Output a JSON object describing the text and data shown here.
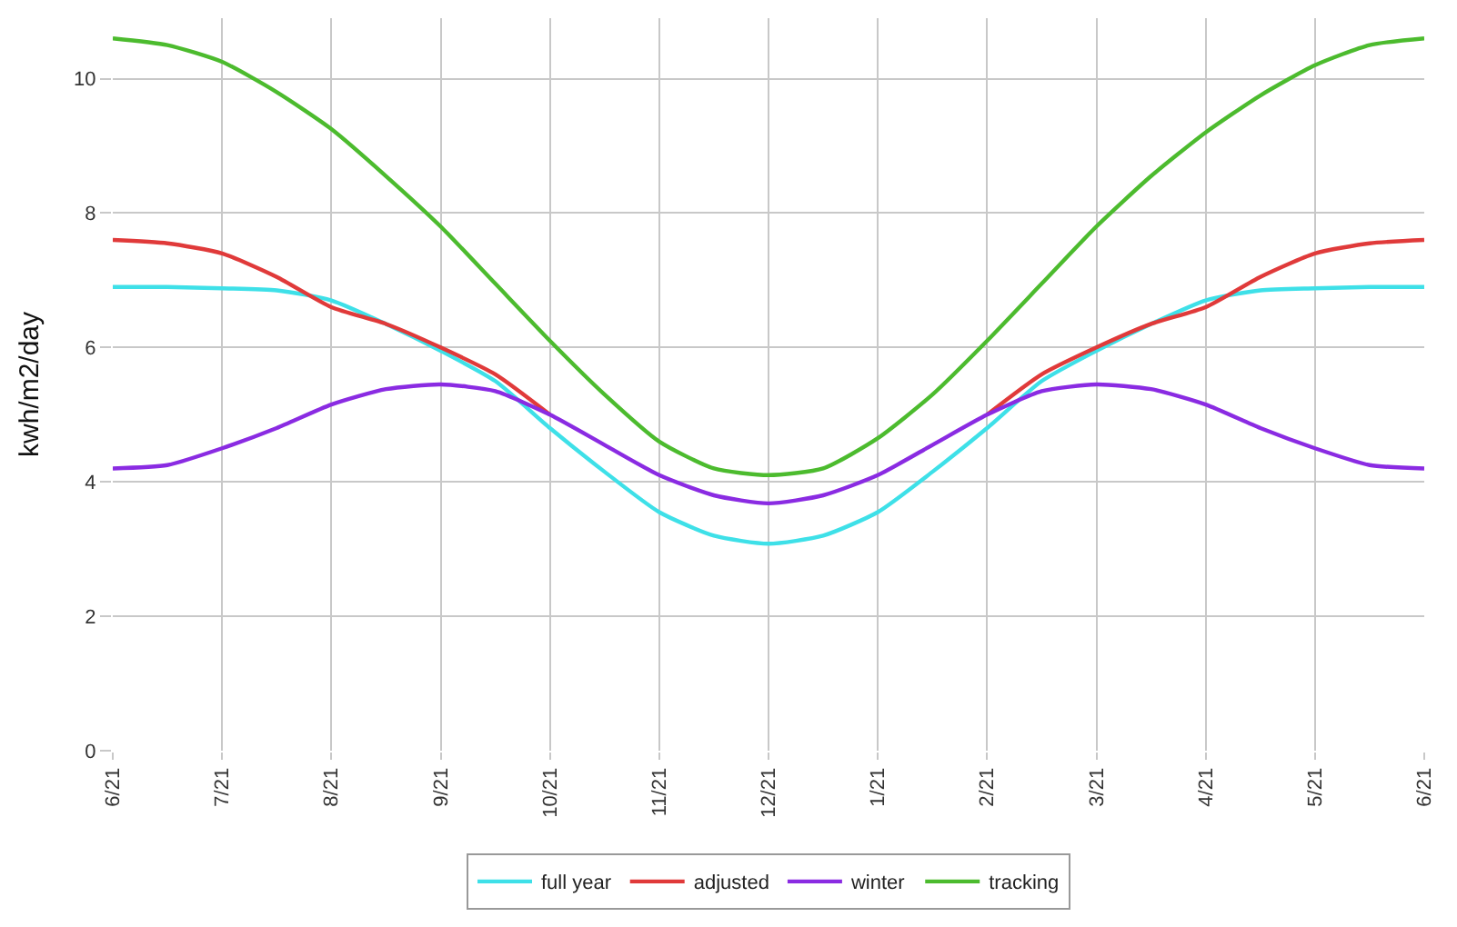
{
  "chart_data": {
    "type": "line",
    "ylabel": "kwh/m2/day",
    "categories": [
      "6/21",
      null,
      "7/21",
      null,
      "8/21",
      null,
      "9/21",
      null,
      "10/21",
      null,
      "11/21",
      null,
      "12/21",
      null,
      "1/21",
      null,
      "2/21",
      null,
      "3/21",
      null,
      "4/21",
      null,
      "5/21",
      null,
      "6/21"
    ],
    "ylim": [
      0,
      10.9
    ],
    "yticks": [
      0,
      2,
      4,
      6,
      8,
      10
    ],
    "grid": true,
    "legend": "bottom",
    "marker": "none",
    "line_style": "solid",
    "series": [
      {
        "name": "full year",
        "color": "#3ee0e8",
        "values": [
          6.9,
          6.9,
          6.88,
          6.85,
          6.7,
          6.35,
          5.95,
          5.5,
          4.8,
          4.15,
          3.55,
          3.2,
          3.08,
          3.2,
          3.55,
          4.15,
          4.8,
          5.5,
          5.95,
          6.35,
          6.7,
          6.85,
          6.88,
          6.9,
          6.9
        ]
      },
      {
        "name": "adjusted",
        "color": "#e03a3a",
        "values": [
          7.6,
          7.55,
          7.4,
          7.05,
          6.6,
          6.35,
          6.0,
          5.6,
          5.0,
          null,
          null,
          null,
          null,
          null,
          null,
          null,
          5.0,
          5.6,
          6.0,
          6.35,
          6.6,
          7.05,
          7.4,
          7.55,
          7.6
        ]
      },
      {
        "name": "winter",
        "color": "#8a2be2",
        "values": [
          4.2,
          4.25,
          4.5,
          4.8,
          5.15,
          5.38,
          5.45,
          5.35,
          5.0,
          4.55,
          4.1,
          3.8,
          3.68,
          3.8,
          4.1,
          4.55,
          5.0,
          5.35,
          5.45,
          5.38,
          5.15,
          4.8,
          4.5,
          4.25,
          4.2
        ]
      },
      {
        "name": "tracking",
        "color": "#4cbb2e",
        "values": [
          10.6,
          10.5,
          10.25,
          9.8,
          9.25,
          8.55,
          7.8,
          6.95,
          6.1,
          5.3,
          4.6,
          4.2,
          4.1,
          4.2,
          4.65,
          5.3,
          6.1,
          6.95,
          7.8,
          8.55,
          9.2,
          9.75,
          10.2,
          10.5,
          10.6
        ]
      }
    ]
  }
}
